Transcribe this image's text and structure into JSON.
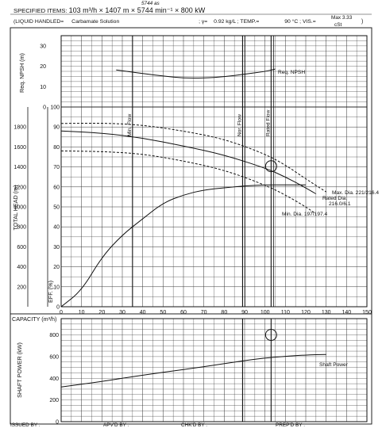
{
  "header": {
    "specified_items_label": "SPECIFIED ITEMS:",
    "specified_items_value": "103 m³/h × 1407 m × 5744 min⁻¹ × 800 kW",
    "handwritten_note": "5744 as",
    "liquid_label": "(LIQUID HANDLED=",
    "liquid_value": "Carbamate Solution",
    "gamma_label": "; γ=",
    "gamma_value": "0.92 kg/L",
    "temp_label": "; TEMP.=",
    "temp_value": "90 °C",
    "vis_label": "; VIS.=",
    "vis_value": "Max 3.33",
    "vis_unit": "cSt",
    "close_paren": ")"
  },
  "footer": {
    "issued": "ISSUED BY :",
    "apvd": "APV'D BY :",
    "chkd": "CHK'D BY :",
    "prepd": "PREP'D BY :"
  },
  "chart_data": {
    "type": "line",
    "xlabel": "CAPACITY (m³/h)",
    "x_ticks": [
      0,
      10,
      20,
      30,
      40,
      50,
      60,
      70,
      80,
      90,
      100,
      110,
      120,
      130,
      140,
      150
    ],
    "xlim": [
      0,
      150
    ],
    "grid": true,
    "npsh_axis": {
      "ylabel": "Req. NPSH (m)",
      "ticks": [
        0,
        10,
        20,
        30
      ],
      "ylim": [
        0,
        35
      ]
    },
    "head_axis": {
      "ylabel": "TOTAL HEAD (m)",
      "ticks": [
        200,
        400,
        600,
        800,
        1000,
        1200,
        1400,
        1600,
        1800
      ],
      "ylim": [
        0,
        2000
      ]
    },
    "eff_axis": {
      "ylabel": "EFF. (%)",
      "ticks": [
        0,
        10,
        20,
        30,
        40,
        50,
        60,
        70,
        80,
        90,
        100
      ],
      "ylim": [
        0,
        100
      ]
    },
    "power_axis": {
      "ylabel": "SHAFT POWER (kW)",
      "ticks": [
        0,
        200,
        400,
        600,
        800
      ],
      "ylim": [
        0,
        950
      ]
    },
    "reference_lines": [
      {
        "label": "Min. Flow",
        "x": 35
      },
      {
        "label": "Nor. Flow",
        "x": 89
      },
      {
        "label": "Rated Flow",
        "x": 103
      }
    ],
    "rated_point": {
      "x": 103,
      "head": 1407,
      "power": 800
    },
    "series": [
      {
        "name": "Req. NPSH",
        "axis": "npsh",
        "x": [
          27,
          40,
          50,
          60,
          70,
          80,
          90,
          100,
          105
        ],
        "values": [
          18.2,
          16.4,
          15.2,
          14.2,
          14.2,
          14.8,
          16.1,
          17.4,
          18.6
        ]
      },
      {
        "name": "Rated Dia. 216.0/6.1",
        "axis": "head",
        "x": [
          0,
          20,
          40,
          60,
          80,
          100,
          110,
          120,
          125
        ],
        "values": [
          1760,
          1740,
          1690,
          1610,
          1520,
          1390,
          1300,
          1190,
          1130
        ]
      },
      {
        "name": "Max. Dia. 221/216.4",
        "axis": "head",
        "style": "dashed",
        "x": [
          0,
          20,
          40,
          60,
          80,
          100,
          110,
          120,
          130
        ],
        "values": [
          1835,
          1840,
          1820,
          1760,
          1680,
          1530,
          1420,
          1280,
          1150
        ]
      },
      {
        "name": "Min. Dia. 197/197.4",
        "axis": "head",
        "style": "dashed",
        "x": [
          0,
          20,
          40,
          60,
          80,
          100,
          110,
          120,
          125
        ],
        "values": [
          1560,
          1555,
          1530,
          1460,
          1370,
          1220,
          1120,
          1000,
          930
        ]
      },
      {
        "name": "EFF",
        "axis": "eff",
        "x": [
          0,
          10,
          20,
          30,
          40,
          50,
          60,
          70,
          80,
          90,
          100,
          110,
          115,
          120
        ],
        "values": [
          0,
          8,
          25,
          36,
          44,
          52,
          56,
          58.5,
          59.5,
          60.5,
          61,
          61,
          61,
          61
        ]
      },
      {
        "name": "Shaft Power",
        "axis": "power",
        "x": [
          0,
          20,
          40,
          60,
          80,
          100,
          120,
          130
        ],
        "values": [
          320,
          370,
          430,
          480,
          535,
          590,
          615,
          620
        ]
      }
    ]
  }
}
